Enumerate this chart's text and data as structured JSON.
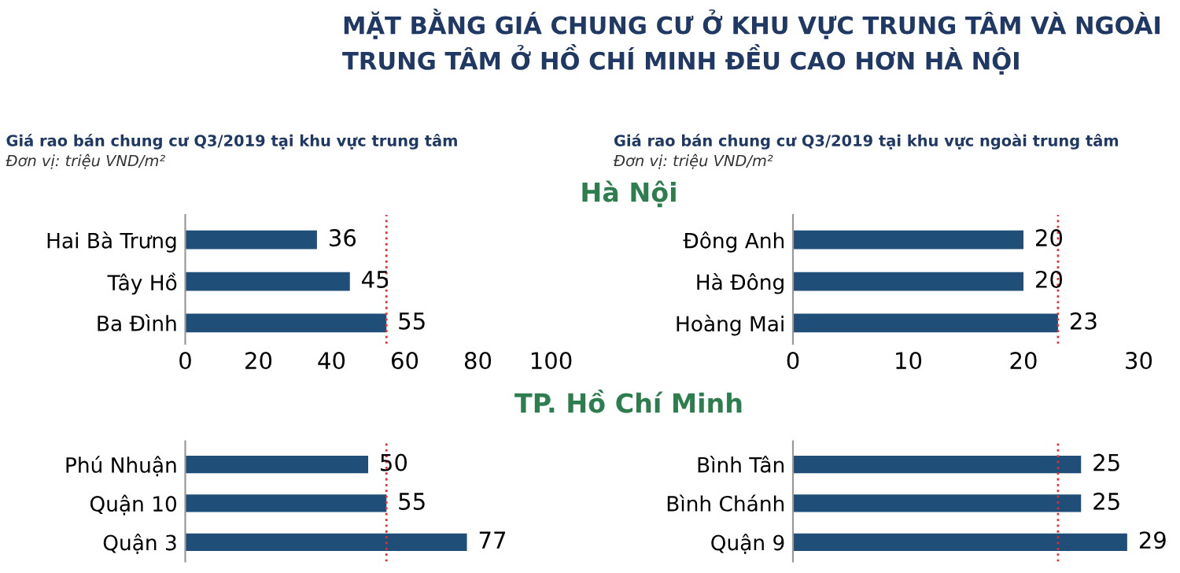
{
  "chart_data": [
    {
      "type": "bar",
      "orientation": "horizontal",
      "title": "MẶT BẰNG GIÁ CHUNG CƯ Ở KHU VỰC TRUNG TÂM VÀ NGOÀI TRUNG TÂM Ở HỒ CHÍ MINH ĐỀU CAO HƠN HÀ NỘI",
      "subtitle": "Giá rao bán chung cư Q3/2019 tại khu vực trung tâm",
      "annotations": [
        "Đơn vị: triệu VND/m²",
        "Hà Nội"
      ],
      "categories": [
        "Hai Bà Trưng",
        "Tây Hồ",
        "Ba Đình"
      ],
      "values": [
        36,
        45,
        55
      ],
      "color": "#1f4e79",
      "xlim": [
        0,
        100
      ],
      "xticks": [
        0,
        20,
        40,
        60,
        80,
        100
      ],
      "data_labels": true,
      "ref_lines": [
        {
          "axis": "x",
          "value": 55,
          "color": "#e03030",
          "line_style": "dotted"
        }
      ],
      "grid": false
    },
    {
      "type": "bar",
      "orientation": "horizontal",
      "subtitle": "Giá rao bán chung cư Q3/2019 tại khu vực ngoài trung tâm",
      "annotations": [
        "Đơn vị: triệu VND/m²"
      ],
      "categories": [
        "Đông Anh",
        "Hà Đông",
        "Hoàng Mai"
      ],
      "values": [
        20,
        20,
        23
      ],
      "color": "#1f4e79",
      "xlim": [
        0,
        30
      ],
      "xticks": [
        0,
        10,
        20,
        30
      ],
      "data_labels": true,
      "ref_lines": [
        {
          "axis": "x",
          "value": 23,
          "color": "#e03030",
          "line_style": "dotted"
        }
      ],
      "grid": false
    },
    {
      "type": "bar",
      "orientation": "horizontal",
      "annotations": [
        "TP. Hồ Chí Minh"
      ],
      "categories": [
        "Phú Nhuận",
        "Quận 10",
        "Quận 3"
      ],
      "values": [
        50,
        55,
        77
      ],
      "color": "#1f4e79",
      "xlim": [
        0,
        100
      ],
      "tick_labels": "y",
      "data_labels": true,
      "ref_lines": [
        {
          "axis": "x",
          "value": 55,
          "color": "#e03030",
          "line_style": "dotted"
        }
      ],
      "grid": false
    },
    {
      "type": "bar",
      "orientation": "horizontal",
      "categories": [
        "Bình Tân",
        "Bình Chánh",
        "Quận 9"
      ],
      "values": [
        25,
        25,
        29
      ],
      "color": "#1f4e79",
      "xlim": [
        0,
        30
      ],
      "tick_labels": "y",
      "data_labels": true,
      "ref_lines": [
        {
          "axis": "x",
          "value": 23,
          "color": "#e03030",
          "line_style": "dotted"
        }
      ],
      "grid": false
    }
  ]
}
